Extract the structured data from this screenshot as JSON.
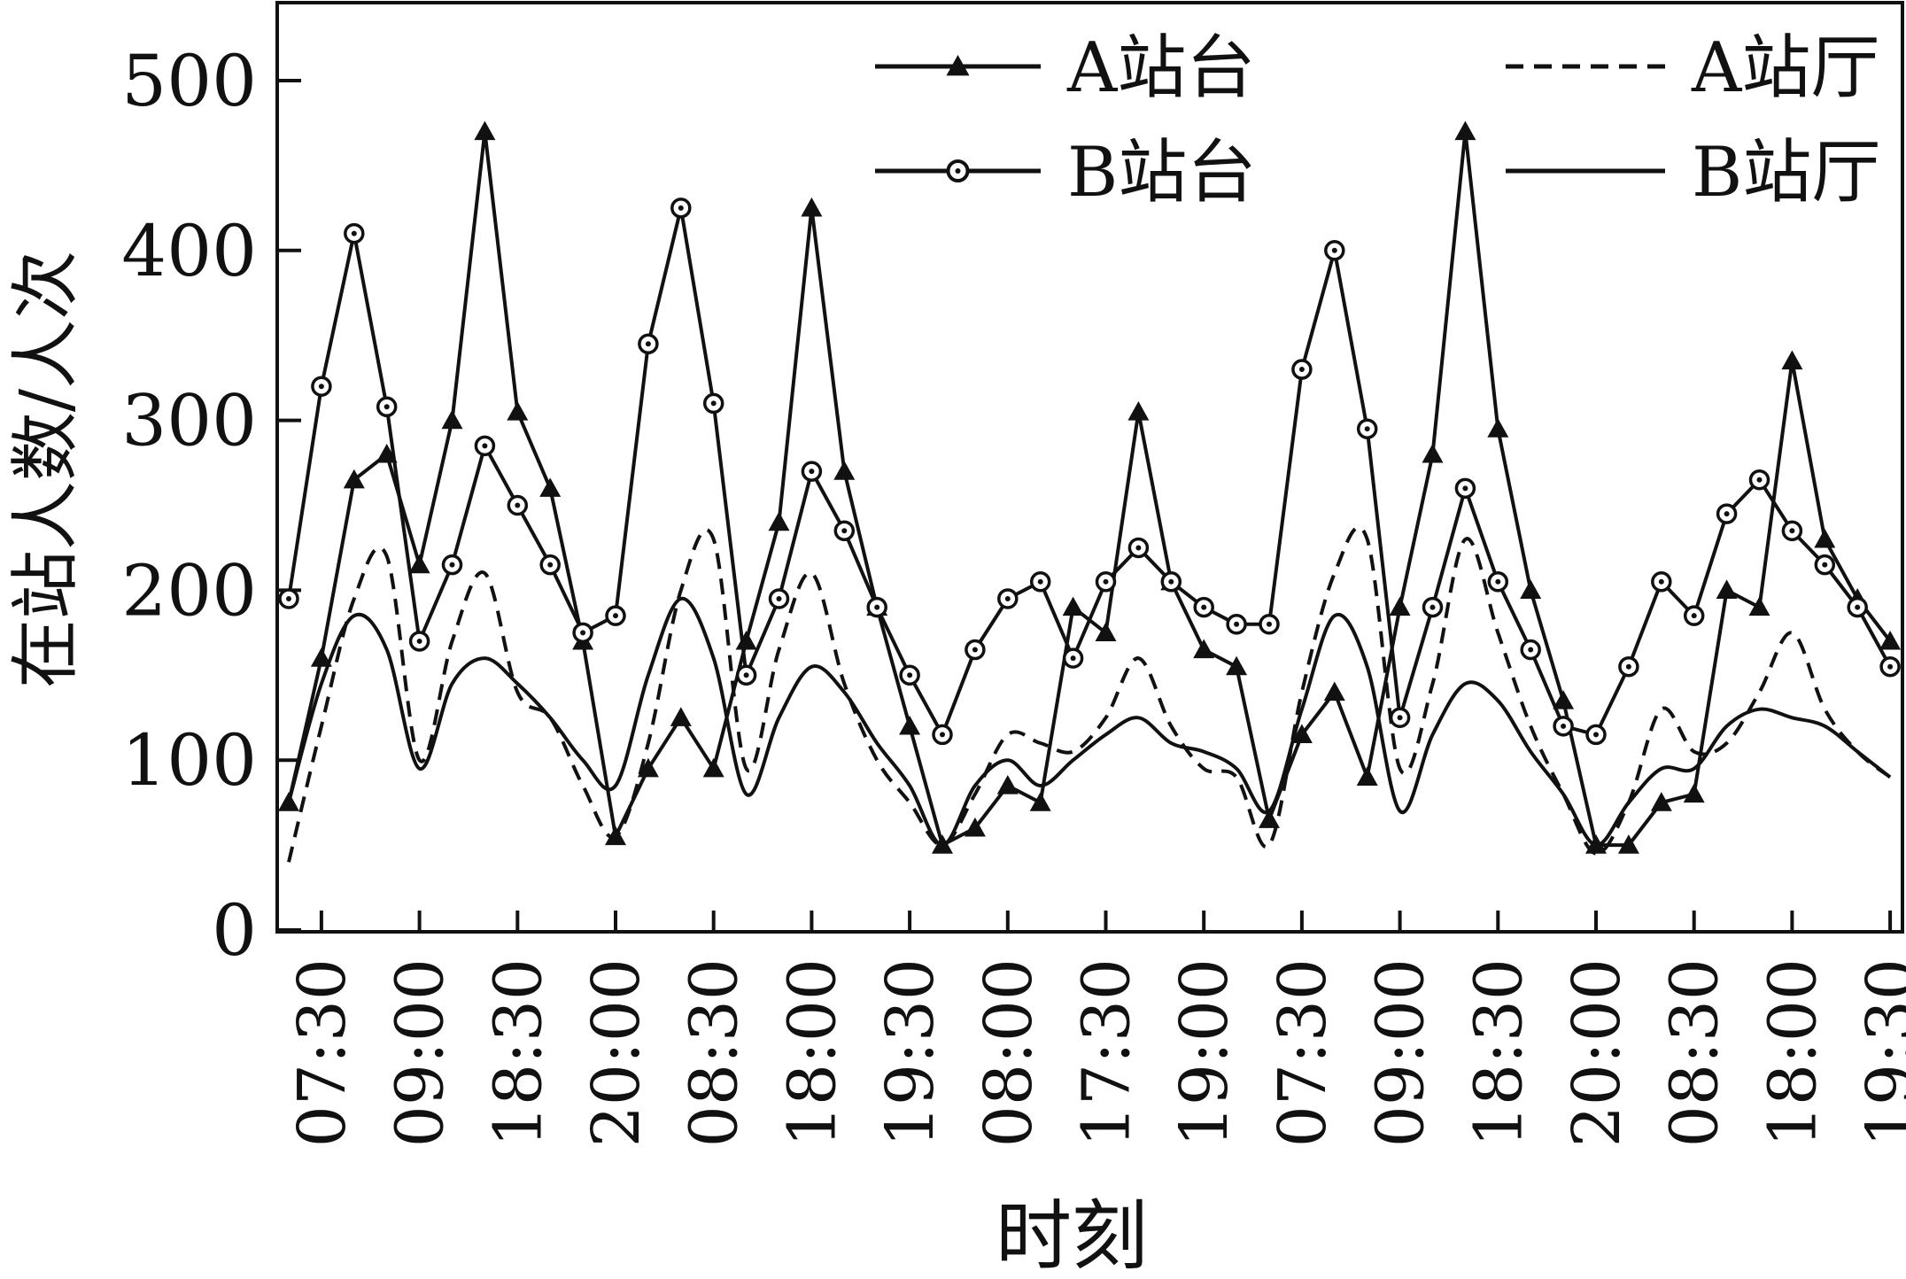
{
  "chart_data": {
    "type": "line",
    "title": "",
    "xlabel": "时刻",
    "ylabel": "在站人数/人次",
    "ylim": [
      0,
      550
    ],
    "yticks": [
      0,
      100,
      200,
      300,
      400,
      500
    ],
    "tick_labels": [
      "07:30",
      "09:00",
      "18:30",
      "20:00",
      "08:30",
      "18:00",
      "19:30",
      "08:00",
      "17:30",
      "19:00",
      "07:30",
      "09:00",
      "18:30",
      "20:00",
      "08:30",
      "18:00",
      "19:30"
    ],
    "legend_position": "top-right",
    "grid": false,
    "series": [
      {
        "name": "A站台",
        "marker": "triangle",
        "line": "solid",
        "values": [
          75,
          160,
          265,
          280,
          215,
          300,
          470,
          305,
          260,
          170,
          55,
          95,
          125,
          95,
          170,
          240,
          425,
          270,
          190,
          120,
          50,
          60,
          85,
          75,
          190,
          175,
          305,
          205,
          165,
          155,
          65,
          115,
          140,
          90,
          190,
          280,
          470,
          295,
          200,
          135,
          50,
          50,
          75,
          80,
          200,
          190,
          335,
          230,
          195,
          170
        ]
      },
      {
        "name": "B站台",
        "marker": "circle",
        "line": "solid",
        "values": [
          195,
          320,
          410,
          308,
          170,
          215,
          285,
          250,
          215,
          175,
          185,
          345,
          425,
          310,
          150,
          195,
          270,
          235,
          190,
          150,
          115,
          165,
          195,
          205,
          160,
          205,
          225,
          205,
          190,
          180,
          180,
          330,
          400,
          295,
          125,
          190,
          260,
          205,
          165,
          120,
          115,
          155,
          205,
          185,
          245,
          265,
          235,
          215,
          190,
          155
        ]
      },
      {
        "name": "A站厅",
        "line": "dashed",
        "values": [
          40,
          120,
          195,
          220,
          100,
          170,
          210,
          140,
          125,
          85,
          55,
          110,
          200,
          230,
          95,
          165,
          210,
          145,
          100,
          75,
          50,
          80,
          115,
          110,
          105,
          125,
          160,
          120,
          95,
          90,
          50,
          140,
          210,
          230,
          95,
          145,
          230,
          175,
          120,
          80,
          45,
          75,
          130,
          105,
          110,
          140,
          175,
          130,
          105,
          90
        ]
      },
      {
        "name": "B站厅",
        "line": "solid",
        "values": [
          75,
          145,
          185,
          165,
          95,
          145,
          160,
          145,
          125,
          100,
          85,
          150,
          195,
          160,
          80,
          125,
          155,
          140,
          110,
          85,
          50,
          85,
          100,
          85,
          100,
          115,
          125,
          110,
          105,
          95,
          70,
          130,
          185,
          155,
          70,
          115,
          145,
          135,
          105,
          80,
          50,
          75,
          95,
          95,
          120,
          130,
          125,
          120,
          105,
          90
        ]
      }
    ]
  }
}
